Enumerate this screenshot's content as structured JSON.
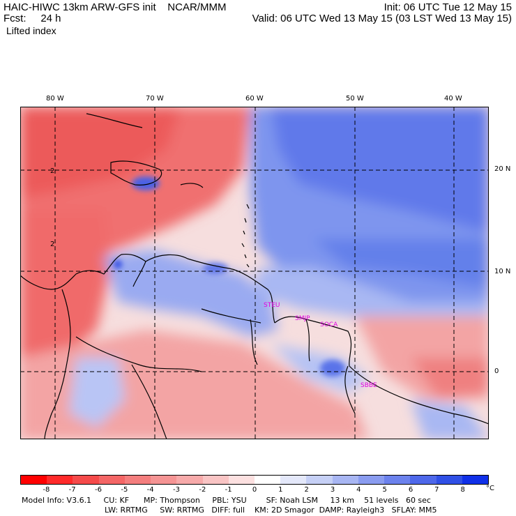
{
  "header": {
    "title": "HAIC-HIWC 13km ARW-GFS init    NCAR/MMM",
    "fcst": "Fcst:     24 h",
    "init": "Init: 06 UTC Tue 12 May 15",
    "valid": "Valid: 06 UTC Wed 13 May 15 (03 LST Wed 13 May 15)",
    "field": "Lifted index"
  },
  "map": {
    "lon_labels": [
      "80 W",
      "70 W",
      "60 W",
      "50 W",
      "40 W"
    ],
    "lat_labels": [
      "20 N",
      "10 N",
      "0"
    ],
    "contour_labels": [
      "2",
      "2"
    ],
    "stations": [
      "STEU",
      "SMJP",
      "SOCA",
      "SBBE"
    ],
    "colors": {
      "station": "#e000e0",
      "negative_strong": "#f26060",
      "negative_mid": "#f79a9a",
      "negative_weak": "#fbcaca",
      "positive_weak": "#c8d4f5",
      "positive_mid": "#8aa2ef",
      "positive_strong": "#4f6ce8"
    }
  },
  "colorbar": {
    "labels": [
      "-8",
      "-7",
      "-6",
      "-5",
      "-4",
      "-3",
      "-2",
      "-1",
      "0",
      "1",
      "2",
      "3",
      "4",
      "5",
      "6",
      "7",
      "8"
    ],
    "unit": "°C",
    "colors": [
      "#ff0000",
      "#ff2a2a",
      "#f54a4a",
      "#f46666",
      "#f47e7e",
      "#f59494",
      "#f7aaaa",
      "#f9c4c4",
      "#fce0e0",
      "#ffffff",
      "#e4e8fa",
      "#c6d0f6",
      "#a8b6f3",
      "#8a9cf0",
      "#6c82ed",
      "#4e68ea",
      "#3050e6",
      "#1030e8"
    ]
  },
  "info": {
    "line1": "Model Info: V3.6.1     CU: KF      MP: Thompson     PBL: YSU        SF: Noah LSM     13 km    51 levels   60 sec",
    "line2": "LW: RRTMG     SW: RRTMG   DIFF: full    KM: 2D Smagor  DAMP: Rayleigh3   SFLAY: MM5"
  }
}
